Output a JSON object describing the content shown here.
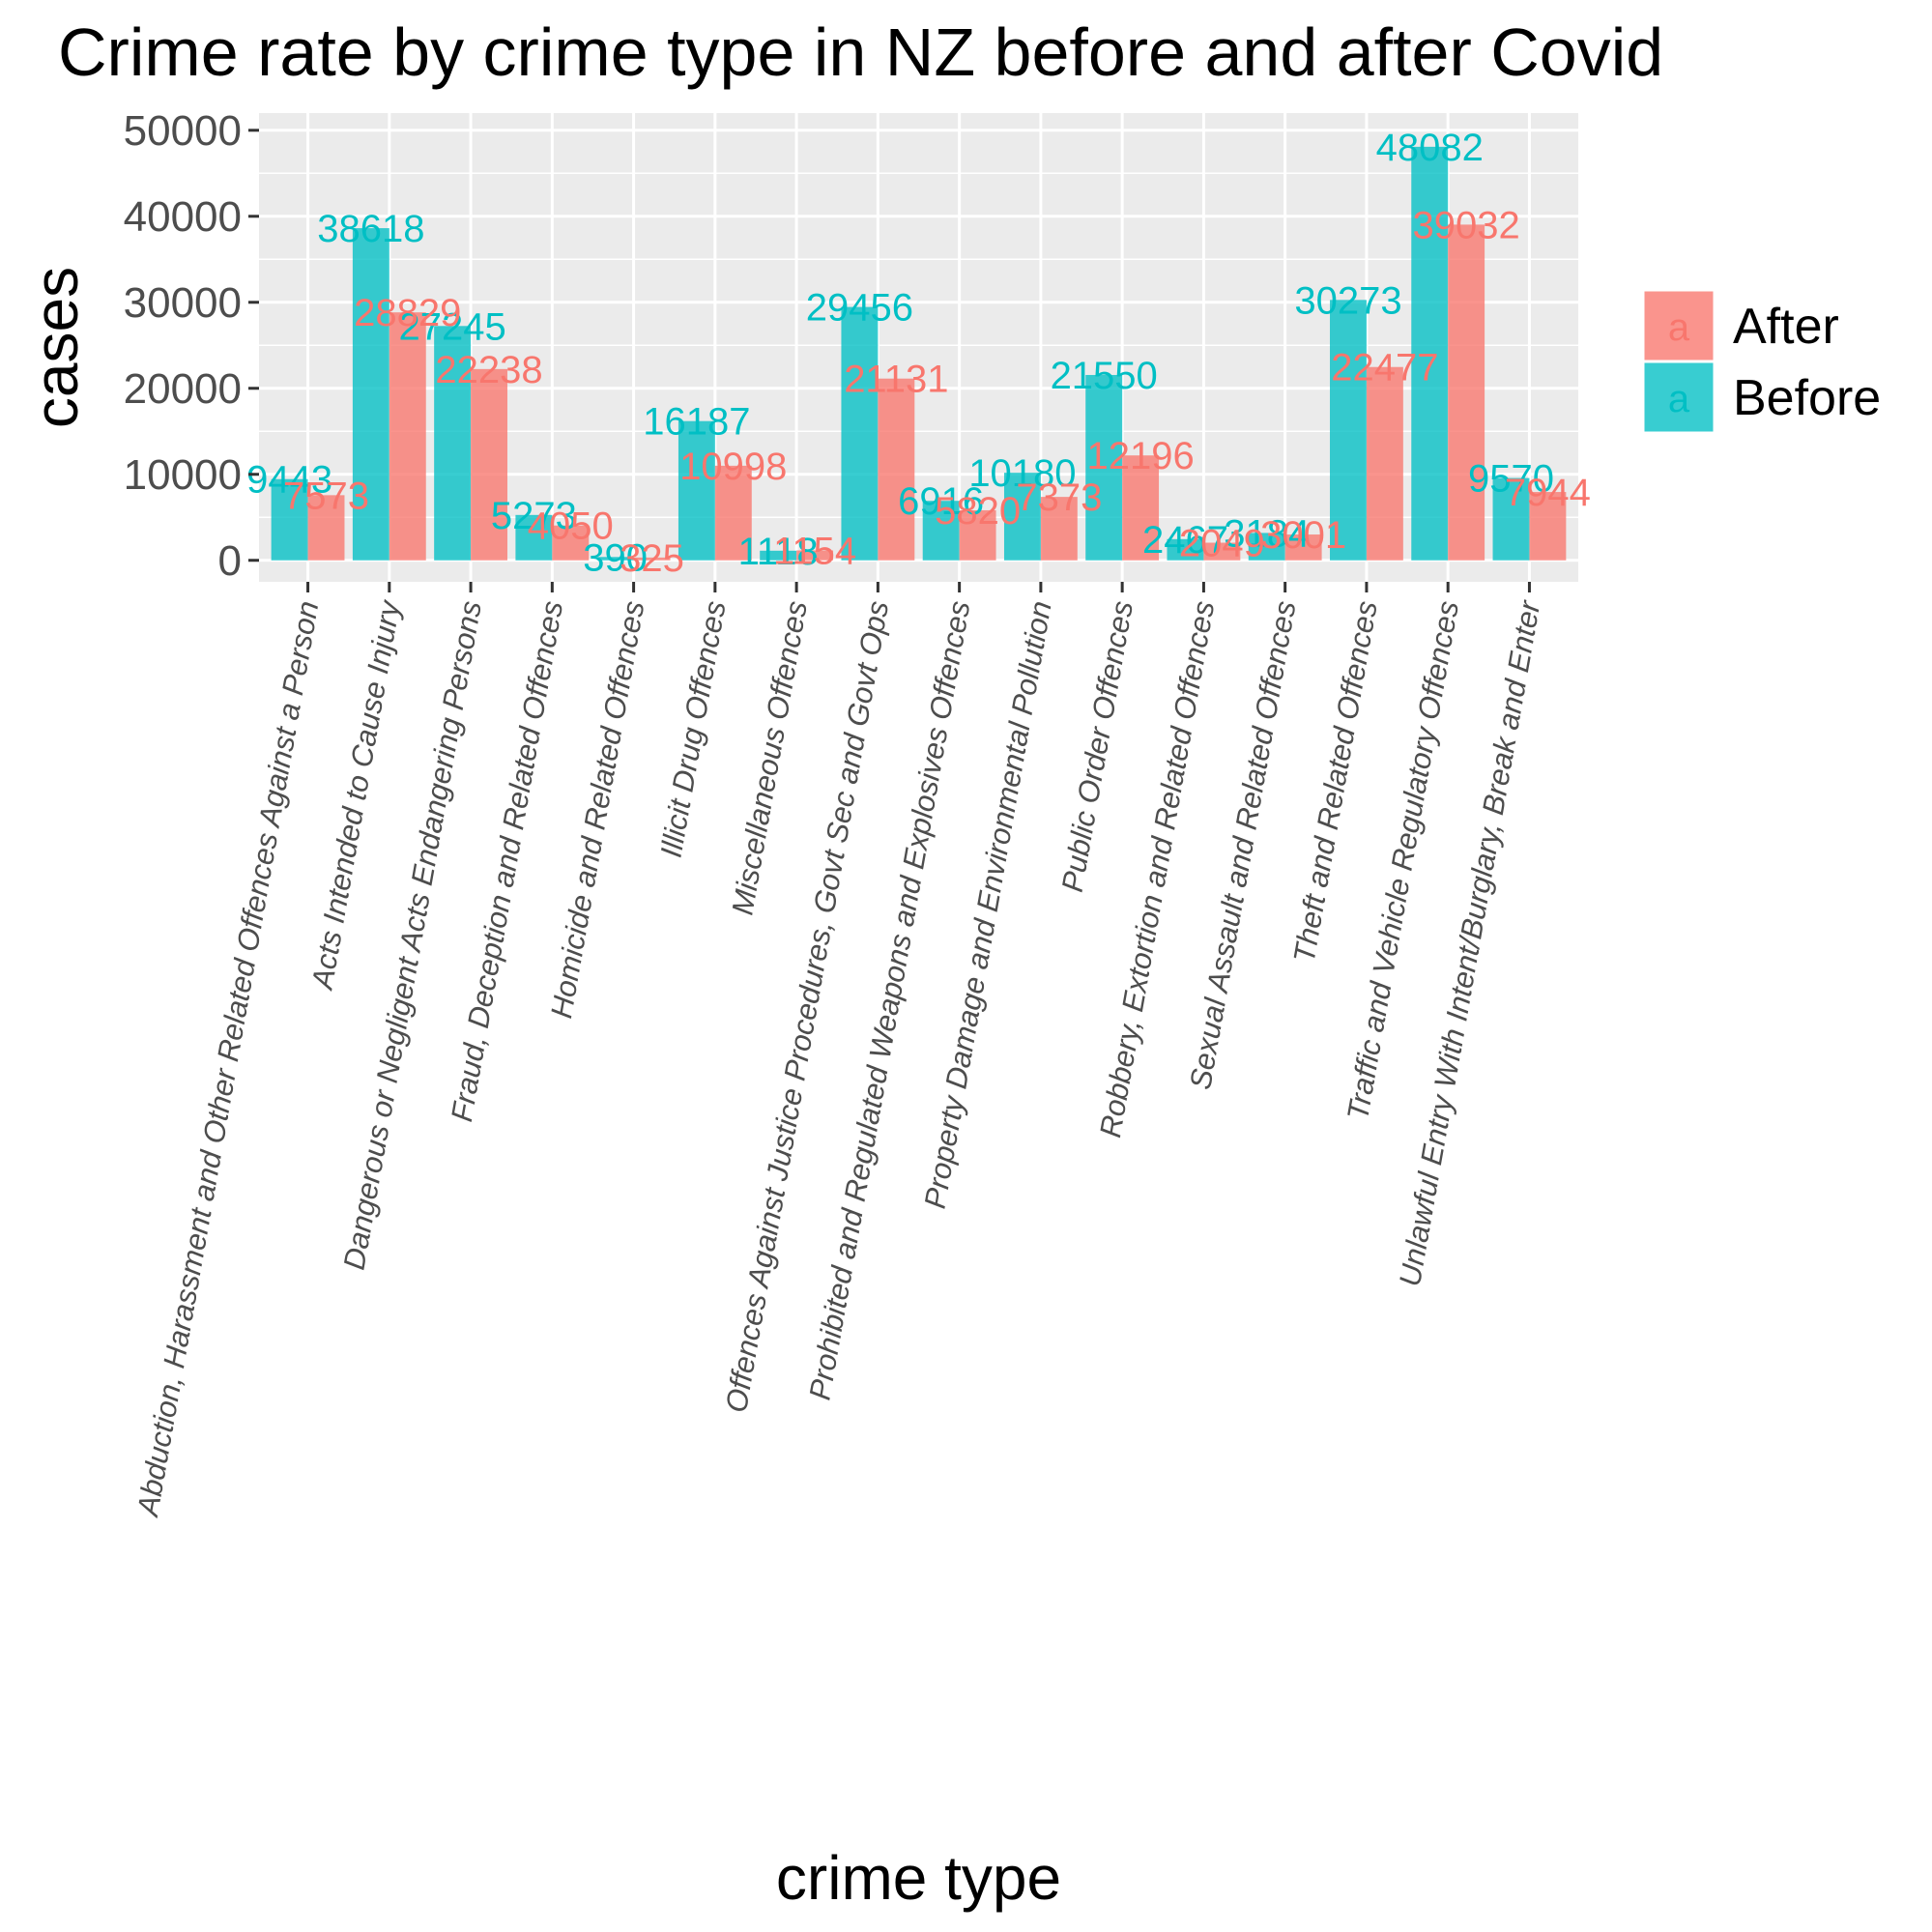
{
  "chart_data": {
    "type": "bar",
    "title": "Crime rate by crime type in NZ before and after Covid",
    "xlabel": "crime type",
    "ylabel": "cases",
    "ylim": [
      -2500,
      52000
    ],
    "yticks": [
      0,
      10000,
      20000,
      30000,
      40000,
      50000
    ],
    "grid": true,
    "legend_position": "right",
    "categories": [
      "Abduction, Harassment and Other Related Offences Against a Person",
      "Acts Intended to Cause Injury",
      "Dangerous or Negligent Acts Endangering Persons",
      "Fraud, Deception and Related Offences",
      "Homicide and Related Offences",
      "Illicit Drug Offences",
      "Miscellaneous Offences",
      "Offences Against Justice Procedures, Govt Sec and Govt Ops",
      "Prohibited and Regulated Weapons and Explosives Offences",
      "Property Damage and Environmental Pollution",
      "Public Order Offences",
      "Robbery, Extortion and Related Offences",
      "Sexual Assault and Related Offences",
      "Theft and Related Offences",
      "Traffic and Vehicle Regulatory Offences",
      "Unlawful Entry With Intent/Burglary, Break and Enter"
    ],
    "series": [
      {
        "name": "Before",
        "color": "#00BFC4",
        "values": [
          9443,
          38618,
          27245,
          5273,
          390,
          16187,
          1118,
          29456,
          6916,
          10180,
          21550,
          2467,
          3184,
          30273,
          48082,
          9570
        ]
      },
      {
        "name": "After",
        "color": "#F8766D",
        "values": [
          7573,
          28829,
          22238,
          4050,
          325,
          10998,
          1154,
          21131,
          5820,
          7373,
          12196,
          2049,
          3001,
          22477,
          39032,
          7944
        ]
      }
    ],
    "legend": {
      "key_glyph": "a",
      "entries": [
        {
          "label": "After",
          "color": "#F8766D"
        },
        {
          "label": "Before",
          "color": "#00BFC4"
        }
      ]
    }
  }
}
